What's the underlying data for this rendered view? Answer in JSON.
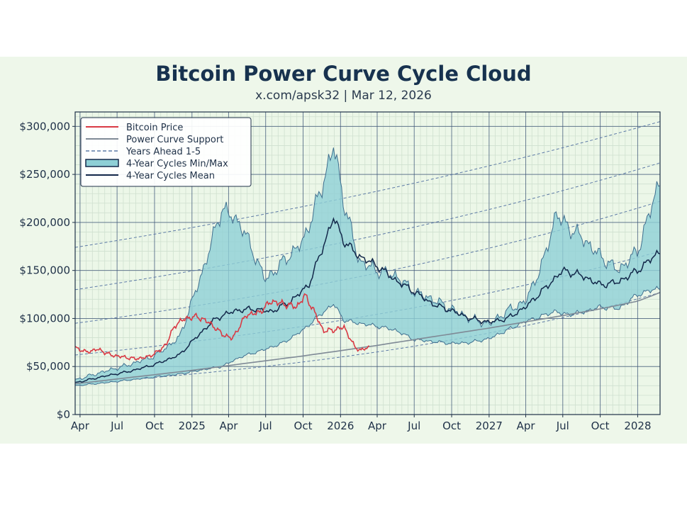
{
  "header": {
    "title": "Bitcoin Power Curve Cycle Cloud",
    "subtitle": "x.com/apsk32 | Mar 12, 2026"
  },
  "colors": {
    "background_panel": "#eef7ea",
    "price": "#d93a44",
    "support": "#7f8a96",
    "years_ahead": "#5d7aa6",
    "cloud_fill": "#8ecfd6",
    "cloud_edge": "#3f6f8f",
    "mean": "#13284a",
    "grid_major": "#3d5577",
    "grid_minor": "#cfe0cf"
  },
  "legend": {
    "items": [
      {
        "key": "price",
        "label": "Bitcoin Price"
      },
      {
        "key": "support",
        "label": "Power Curve Support"
      },
      {
        "key": "years_ahead",
        "label": "Years Ahead 1-5"
      },
      {
        "key": "cloud",
        "label": "4-Year Cycles Min/Max"
      },
      {
        "key": "mean",
        "label": "4-Year Cycles Mean"
      }
    ],
    "placement": "top-left"
  },
  "chart_data": {
    "type": "area",
    "title": "Bitcoin Power Curve Cycle Cloud",
    "subtitle": "x.com/apsk32 | Mar 12, 2026",
    "xlabel": "",
    "ylabel": "",
    "x_range": [
      "2024-03-20",
      "2028-02-25"
    ],
    "ylim": [
      0,
      315000
    ],
    "grid": true,
    "legend_position": "top-left",
    "x_ticks": [
      {
        "date": "2024-04-01",
        "label": "Apr"
      },
      {
        "date": "2024-07-01",
        "label": "Jul"
      },
      {
        "date": "2024-10-01",
        "label": "Oct"
      },
      {
        "date": "2025-01-01",
        "label": "2025"
      },
      {
        "date": "2025-04-01",
        "label": "Apr"
      },
      {
        "date": "2025-07-01",
        "label": "Jul"
      },
      {
        "date": "2025-10-01",
        "label": "Oct"
      },
      {
        "date": "2026-01-01",
        "label": "2026"
      },
      {
        "date": "2026-04-01",
        "label": "Apr"
      },
      {
        "date": "2026-07-01",
        "label": "Jul"
      },
      {
        "date": "2026-10-01",
        "label": "Oct"
      },
      {
        "date": "2027-01-01",
        "label": "2027"
      },
      {
        "date": "2027-04-01",
        "label": "Apr"
      },
      {
        "date": "2027-07-01",
        "label": "Jul"
      },
      {
        "date": "2027-10-01",
        "label": "Oct"
      },
      {
        "date": "2028-01-01",
        "label": "2028"
      }
    ],
    "y_ticks": [
      {
        "value": 0,
        "label": "$0"
      },
      {
        "value": 50000,
        "label": "$50,000"
      },
      {
        "value": 100000,
        "label": "$100,000"
      },
      {
        "value": 150000,
        "label": "$150,000"
      },
      {
        "value": 200000,
        "label": "$200,000"
      },
      {
        "value": 250000,
        "label": "$250,000"
      },
      {
        "value": 300000,
        "label": "$300,000"
      }
    ],
    "power_curve_support": {
      "x": [
        "2024-03-20",
        "2024-07-01",
        "2024-10-01",
        "2025-01-01",
        "2025-04-01",
        "2025-07-01",
        "2025-10-01",
        "2026-01-01",
        "2026-04-01",
        "2026-07-01",
        "2026-10-01",
        "2027-01-01",
        "2027-04-01",
        "2027-07-01",
        "2027-10-01",
        "2028-01-01",
        "2028-02-25"
      ],
      "y": [
        32000,
        37000,
        41500,
        46000,
        51000,
        56000,
        61000,
        66500,
        72000,
        78000,
        84000,
        90000,
        96500,
        103000,
        110000,
        118000,
        127000
      ]
    },
    "years_ahead": [
      {
        "x": [
          "2024-03-20",
          "2028-02-25"
        ],
        "y": [
          32000,
          127000
        ]
      },
      {
        "x": [
          "2024-03-20",
          "2028-02-25"
        ],
        "y": [
          62000,
          170000
        ]
      },
      {
        "x": [
          "2024-03-20",
          "2028-02-25"
        ],
        "y": [
          95000,
          222000
        ]
      },
      {
        "x": [
          "2024-03-20",
          "2028-02-25"
        ],
        "y": [
          130000,
          262000
        ]
      },
      {
        "x": [
          "2024-03-20",
          "2028-02-25"
        ],
        "y": [
          174000,
          305000
        ]
      }
    ],
    "cloud_min_max": {
      "x": [
        "2024-03-20",
        "2024-06-01",
        "2024-08-01",
        "2024-10-01",
        "2024-12-01",
        "2025-02-01",
        "2025-03-15",
        "2025-05-01",
        "2025-07-01",
        "2025-08-15",
        "2025-10-01",
        "2025-11-15",
        "2025-12-15",
        "2026-01-10",
        "2026-02-15",
        "2026-04-01",
        "2026-05-15",
        "2026-07-01",
        "2026-08-15",
        "2026-10-01",
        "2026-11-15",
        "2027-01-01",
        "2027-02-15",
        "2027-04-01",
        "2027-05-15",
        "2027-06-15",
        "2027-07-01",
        "2027-08-15",
        "2027-10-01",
        "2027-11-15",
        "2028-01-01",
        "2028-02-25"
      ],
      "min": [
        30000,
        33000,
        36000,
        39000,
        42000,
        47000,
        50000,
        60000,
        68000,
        75000,
        88000,
        105000,
        115000,
        98000,
        95000,
        92000,
        88000,
        78000,
        76000,
        74000,
        75000,
        79000,
        88000,
        97000,
        103000,
        108000,
        104000,
        106000,
        112000,
        110000,
        125000,
        132000
      ],
      "max": [
        36000,
        45000,
        52000,
        61000,
        80000,
        155000,
        215000,
        198000,
        140000,
        160000,
        180000,
        235000,
        280000,
        220000,
        160000,
        150000,
        145000,
        128000,
        120000,
        110000,
        100000,
        94000,
        108000,
        118000,
        160000,
        210000,
        200000,
        185000,
        165000,
        150000,
        170000,
        245000
      ]
    },
    "cycle_mean": {
      "x": [
        "2024-03-20",
        "2024-06-01",
        "2024-08-01",
        "2024-10-01",
        "2024-12-01",
        "2025-01-15",
        "2025-03-01",
        "2025-04-15",
        "2025-06-01",
        "2025-07-15",
        "2025-09-01",
        "2025-10-15",
        "2025-11-15",
        "2025-12-15",
        "2026-01-10",
        "2026-02-15",
        "2026-04-01",
        "2026-05-15",
        "2026-07-01",
        "2026-08-15",
        "2026-10-01",
        "2026-11-15",
        "2027-01-01",
        "2027-02-15",
        "2027-04-01",
        "2027-05-15",
        "2027-07-01",
        "2027-08-15",
        "2027-10-01",
        "2027-11-15",
        "2028-01-01",
        "2028-02-25"
      ],
      "y": [
        33000,
        40000,
        45000,
        52000,
        62000,
        82000,
        100000,
        108000,
        110000,
        107000,
        118000,
        135000,
        170000,
        205000,
        180000,
        165000,
        155000,
        140000,
        128000,
        115000,
        108000,
        100000,
        96000,
        100000,
        112000,
        130000,
        150000,
        145000,
        135000,
        138000,
        150000,
        170000
      ]
    },
    "bitcoin_price": {
      "x": [
        "2024-03-20",
        "2024-04-15",
        "2024-05-15",
        "2024-06-15",
        "2024-07-15",
        "2024-08-15",
        "2024-09-15",
        "2024-10-15",
        "2024-11-01",
        "2024-11-20",
        "2024-12-15",
        "2025-01-15",
        "2025-02-15",
        "2025-03-15",
        "2025-04-10",
        "2025-05-15",
        "2025-06-15",
        "2025-07-15",
        "2025-08-15",
        "2025-09-15",
        "2025-10-06",
        "2025-10-25",
        "2025-11-20",
        "2025-12-15",
        "2026-01-10",
        "2026-02-05",
        "2026-02-20",
        "2026-03-12"
      ],
      "y": [
        70000,
        65000,
        68000,
        62000,
        60000,
        58000,
        60000,
        67000,
        75000,
        93000,
        100000,
        102000,
        95000,
        84000,
        79000,
        104000,
        106000,
        118000,
        115000,
        112000,
        124000,
        110000,
        87000,
        88000,
        91000,
        70000,
        67000,
        70000
      ]
    }
  }
}
